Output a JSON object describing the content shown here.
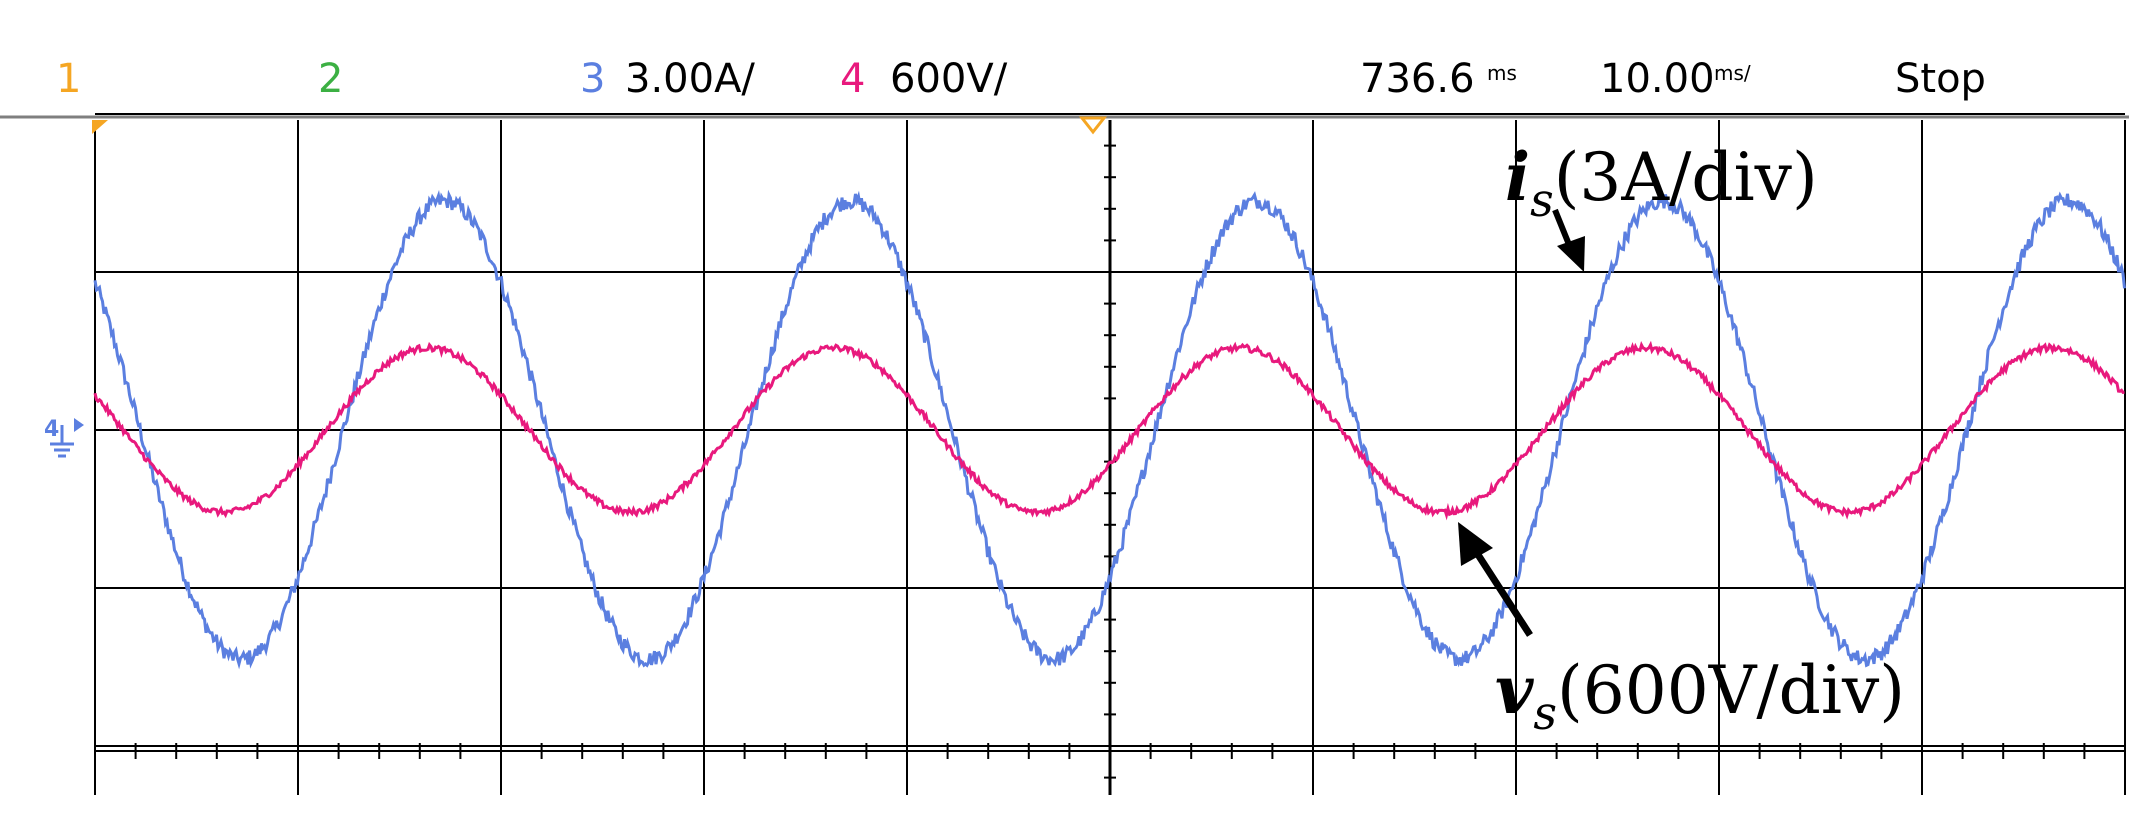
{
  "status_bar": {
    "ch1_label": "1",
    "ch2_label": "2",
    "ch3_label": "3",
    "ch3_scale": "3.00A/",
    "ch4_label": "4",
    "ch4_scale": "600V/",
    "trigger_time_value": "736.6",
    "trigger_time_unit": "ms",
    "timebase_value": "10.00",
    "timebase_unit": "ms/",
    "run_state": "Stop"
  },
  "colors": {
    "ch1": "#f5a623",
    "ch2": "#3cb043",
    "ch3": "#5b7fe0",
    "ch4": "#e8197d",
    "grid": "#000000",
    "divider": "#7f7f7f"
  },
  "annotations": {
    "current": {
      "symbol": "i",
      "subscript": "s",
      "scale_text": "(3A/div)"
    },
    "voltage": {
      "symbol": "v",
      "subscript": "s",
      "scale_text": "(600V/div)"
    }
  },
  "chart_data": {
    "type": "line",
    "x_unit": "ms",
    "x_range": [
      0,
      100
    ],
    "divisions_x": 10,
    "divisions_y": 5,
    "grid": true,
    "series": [
      {
        "channel": 3,
        "color": "#5b7fe0",
        "amplitude_div": 1.45,
        "period_ms": 20,
        "phase_deg": 140,
        "noise_div": 0.05
      },
      {
        "channel": 4,
        "color": "#e8197d",
        "amplitude_div": 0.52,
        "period_ms": 20,
        "phase_deg": 155,
        "noise_div": 0.02
      }
    ]
  }
}
